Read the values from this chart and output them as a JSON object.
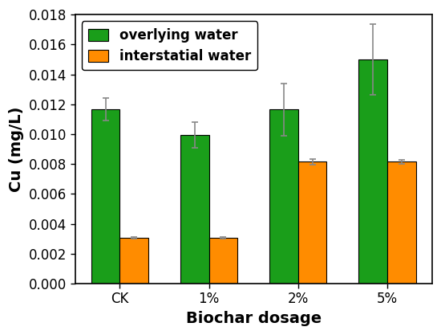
{
  "categories": [
    "CK",
    "1%",
    "2%",
    "5%"
  ],
  "overlying_water": [
    0.01165,
    0.00995,
    0.01165,
    0.015
  ],
  "interstatial_water": [
    0.00305,
    0.00305,
    0.00815,
    0.00815
  ],
  "overlying_water_err": [
    0.00075,
    0.00085,
    0.00175,
    0.00235
  ],
  "interstatial_water_err": [
    5e-05,
    5e-05,
    0.0002,
    0.00015
  ],
  "overlying_color": "#1a9e1a",
  "interstatial_color": "#ff8c00",
  "bar_width": 0.32,
  "ylabel": "Cu (mg/L)",
  "xlabel": "Biochar dosage",
  "ylim": [
    0,
    0.018
  ],
  "yticks": [
    0.0,
    0.002,
    0.004,
    0.006,
    0.008,
    0.01,
    0.012,
    0.014,
    0.016,
    0.018
  ],
  "legend_labels": [
    "overlying water",
    "interstatial water"
  ],
  "label_fontsize": 14,
  "tick_fontsize": 12,
  "legend_fontsize": 12,
  "background_color": "#ffffff",
  "error_cap_size": 3,
  "error_color": "#888888"
}
